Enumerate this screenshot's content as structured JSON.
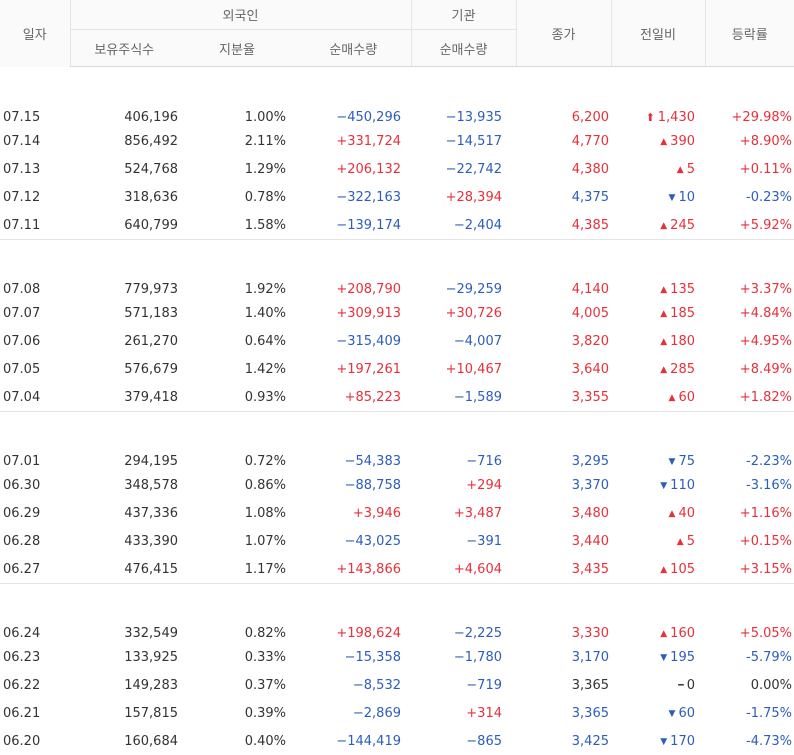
{
  "header": {
    "date": "일자",
    "foreign": "외국인",
    "institution": "기관",
    "holdings": "보유주식수",
    "ratio": "지분율",
    "foreign_net": "순매수량",
    "inst_net": "순매수량",
    "close": "종가",
    "change": "전일비",
    "rate": "등락률"
  },
  "colors": {
    "up": "#e8303a",
    "down": "#2d5dba",
    "flat": "#333333"
  },
  "groups": [
    {
      "rows": [
        {
          "date": "07.15",
          "holdings": "406,196",
          "ratio": "1.00%",
          "foreign_net": "−450,296",
          "foreign_dir": "down",
          "inst_net": "−13,935",
          "inst_dir": "down",
          "close": "6,200",
          "close_dir": "up",
          "arrow": "⬆",
          "change": "1,430",
          "change_dir": "up",
          "rate": "+29.98%",
          "rate_dir": "up",
          "limit": true
        },
        {
          "date": "07.14",
          "holdings": "856,492",
          "ratio": "2.11%",
          "foreign_net": "+331,724",
          "foreign_dir": "up",
          "inst_net": "−14,517",
          "inst_dir": "down",
          "close": "4,770",
          "close_dir": "up",
          "arrow": "▲",
          "change": "390",
          "change_dir": "up",
          "rate": "+8.90%",
          "rate_dir": "up"
        },
        {
          "date": "07.13",
          "holdings": "524,768",
          "ratio": "1.29%",
          "foreign_net": "+206,132",
          "foreign_dir": "up",
          "inst_net": "−22,742",
          "inst_dir": "down",
          "close": "4,380",
          "close_dir": "up",
          "arrow": "▲",
          "change": "5",
          "change_dir": "up",
          "rate": "+0.11%",
          "rate_dir": "up"
        },
        {
          "date": "07.12",
          "holdings": "318,636",
          "ratio": "0.78%",
          "foreign_net": "−322,163",
          "foreign_dir": "down",
          "inst_net": "+28,394",
          "inst_dir": "up",
          "close": "4,375",
          "close_dir": "down",
          "arrow": "▼",
          "change": "10",
          "change_dir": "down",
          "rate": "-0.23%",
          "rate_dir": "down"
        },
        {
          "date": "07.11",
          "holdings": "640,799",
          "ratio": "1.58%",
          "foreign_net": "−139,174",
          "foreign_dir": "down",
          "inst_net": "−2,404",
          "inst_dir": "down",
          "close": "4,385",
          "close_dir": "up",
          "arrow": "▲",
          "change": "245",
          "change_dir": "up",
          "rate": "+5.92%",
          "rate_dir": "up"
        }
      ]
    },
    {
      "rows": [
        {
          "date": "07.08",
          "holdings": "779,973",
          "ratio": "1.92%",
          "foreign_net": "+208,790",
          "foreign_dir": "up",
          "inst_net": "−29,259",
          "inst_dir": "down",
          "close": "4,140",
          "close_dir": "up",
          "arrow": "▲",
          "change": "135",
          "change_dir": "up",
          "rate": "+3.37%",
          "rate_dir": "up"
        },
        {
          "date": "07.07",
          "holdings": "571,183",
          "ratio": "1.40%",
          "foreign_net": "+309,913",
          "foreign_dir": "up",
          "inst_net": "+30,726",
          "inst_dir": "up",
          "close": "4,005",
          "close_dir": "up",
          "arrow": "▲",
          "change": "185",
          "change_dir": "up",
          "rate": "+4.84%",
          "rate_dir": "up"
        },
        {
          "date": "07.06",
          "holdings": "261,270",
          "ratio": "0.64%",
          "foreign_net": "−315,409",
          "foreign_dir": "down",
          "inst_net": "−4,007",
          "inst_dir": "down",
          "close": "3,820",
          "close_dir": "up",
          "arrow": "▲",
          "change": "180",
          "change_dir": "up",
          "rate": "+4.95%",
          "rate_dir": "up"
        },
        {
          "date": "07.05",
          "holdings": "576,679",
          "ratio": "1.42%",
          "foreign_net": "+197,261",
          "foreign_dir": "up",
          "inst_net": "+10,467",
          "inst_dir": "up",
          "close": "3,640",
          "close_dir": "up",
          "arrow": "▲",
          "change": "285",
          "change_dir": "up",
          "rate": "+8.49%",
          "rate_dir": "up"
        },
        {
          "date": "07.04",
          "holdings": "379,418",
          "ratio": "0.93%",
          "foreign_net": "+85,223",
          "foreign_dir": "up",
          "inst_net": "−1,589",
          "inst_dir": "down",
          "close": "3,355",
          "close_dir": "up",
          "arrow": "▲",
          "change": "60",
          "change_dir": "up",
          "rate": "+1.82%",
          "rate_dir": "up"
        }
      ]
    },
    {
      "rows": [
        {
          "date": "07.01",
          "holdings": "294,195",
          "ratio": "0.72%",
          "foreign_net": "−54,383",
          "foreign_dir": "down",
          "inst_net": "−716",
          "inst_dir": "down",
          "close": "3,295",
          "close_dir": "down",
          "arrow": "▼",
          "change": "75",
          "change_dir": "down",
          "rate": "-2.23%",
          "rate_dir": "down"
        },
        {
          "date": "06.30",
          "holdings": "348,578",
          "ratio": "0.86%",
          "foreign_net": "−88,758",
          "foreign_dir": "down",
          "inst_net": "+294",
          "inst_dir": "up",
          "close": "3,370",
          "close_dir": "down",
          "arrow": "▼",
          "change": "110",
          "change_dir": "down",
          "rate": "-3.16%",
          "rate_dir": "down"
        },
        {
          "date": "06.29",
          "holdings": "437,336",
          "ratio": "1.08%",
          "foreign_net": "+3,946",
          "foreign_dir": "up",
          "inst_net": "+3,487",
          "inst_dir": "up",
          "close": "3,480",
          "close_dir": "up",
          "arrow": "▲",
          "change": "40",
          "change_dir": "up",
          "rate": "+1.16%",
          "rate_dir": "up"
        },
        {
          "date": "06.28",
          "holdings": "433,390",
          "ratio": "1.07%",
          "foreign_net": "−43,025",
          "foreign_dir": "down",
          "inst_net": "−391",
          "inst_dir": "down",
          "close": "3,440",
          "close_dir": "up",
          "arrow": "▲",
          "change": "5",
          "change_dir": "up",
          "rate": "+0.15%",
          "rate_dir": "up"
        },
        {
          "date": "06.27",
          "holdings": "476,415",
          "ratio": "1.17%",
          "foreign_net": "+143,866",
          "foreign_dir": "up",
          "inst_net": "+4,604",
          "inst_dir": "up",
          "close": "3,435",
          "close_dir": "up",
          "arrow": "▲",
          "change": "105",
          "change_dir": "up",
          "rate": "+3.15%",
          "rate_dir": "up"
        }
      ]
    },
    {
      "rows": [
        {
          "date": "06.24",
          "holdings": "332,549",
          "ratio": "0.82%",
          "foreign_net": "+198,624",
          "foreign_dir": "up",
          "inst_net": "−2,225",
          "inst_dir": "down",
          "close": "3,330",
          "close_dir": "up",
          "arrow": "▲",
          "change": "160",
          "change_dir": "up",
          "rate": "+5.05%",
          "rate_dir": "up"
        },
        {
          "date": "06.23",
          "holdings": "133,925",
          "ratio": "0.33%",
          "foreign_net": "−15,358",
          "foreign_dir": "down",
          "inst_net": "−1,780",
          "inst_dir": "down",
          "close": "3,170",
          "close_dir": "down",
          "arrow": "▼",
          "change": "195",
          "change_dir": "down",
          "rate": "-5.79%",
          "rate_dir": "down"
        },
        {
          "date": "06.22",
          "holdings": "149,283",
          "ratio": "0.37%",
          "foreign_net": "−8,532",
          "foreign_dir": "down",
          "inst_net": "−719",
          "inst_dir": "down",
          "close": "3,365",
          "close_dir": "flat",
          "arrow": "━",
          "change": "0",
          "change_dir": "flat",
          "rate": "0.00%",
          "rate_dir": "flat"
        },
        {
          "date": "06.21",
          "holdings": "157,815",
          "ratio": "0.39%",
          "foreign_net": "−2,869",
          "foreign_dir": "down",
          "inst_net": "+314",
          "inst_dir": "up",
          "close": "3,365",
          "close_dir": "down",
          "arrow": "▼",
          "change": "60",
          "change_dir": "down",
          "rate": "-1.75%",
          "rate_dir": "down"
        },
        {
          "date": "06.20",
          "holdings": "160,684",
          "ratio": "0.40%",
          "foreign_net": "−144,419",
          "foreign_dir": "down",
          "inst_net": "−865",
          "inst_dir": "down",
          "close": "3,425",
          "close_dir": "down",
          "arrow": "▼",
          "change": "170",
          "change_dir": "down",
          "rate": "-4.73%",
          "rate_dir": "down"
        }
      ]
    }
  ]
}
